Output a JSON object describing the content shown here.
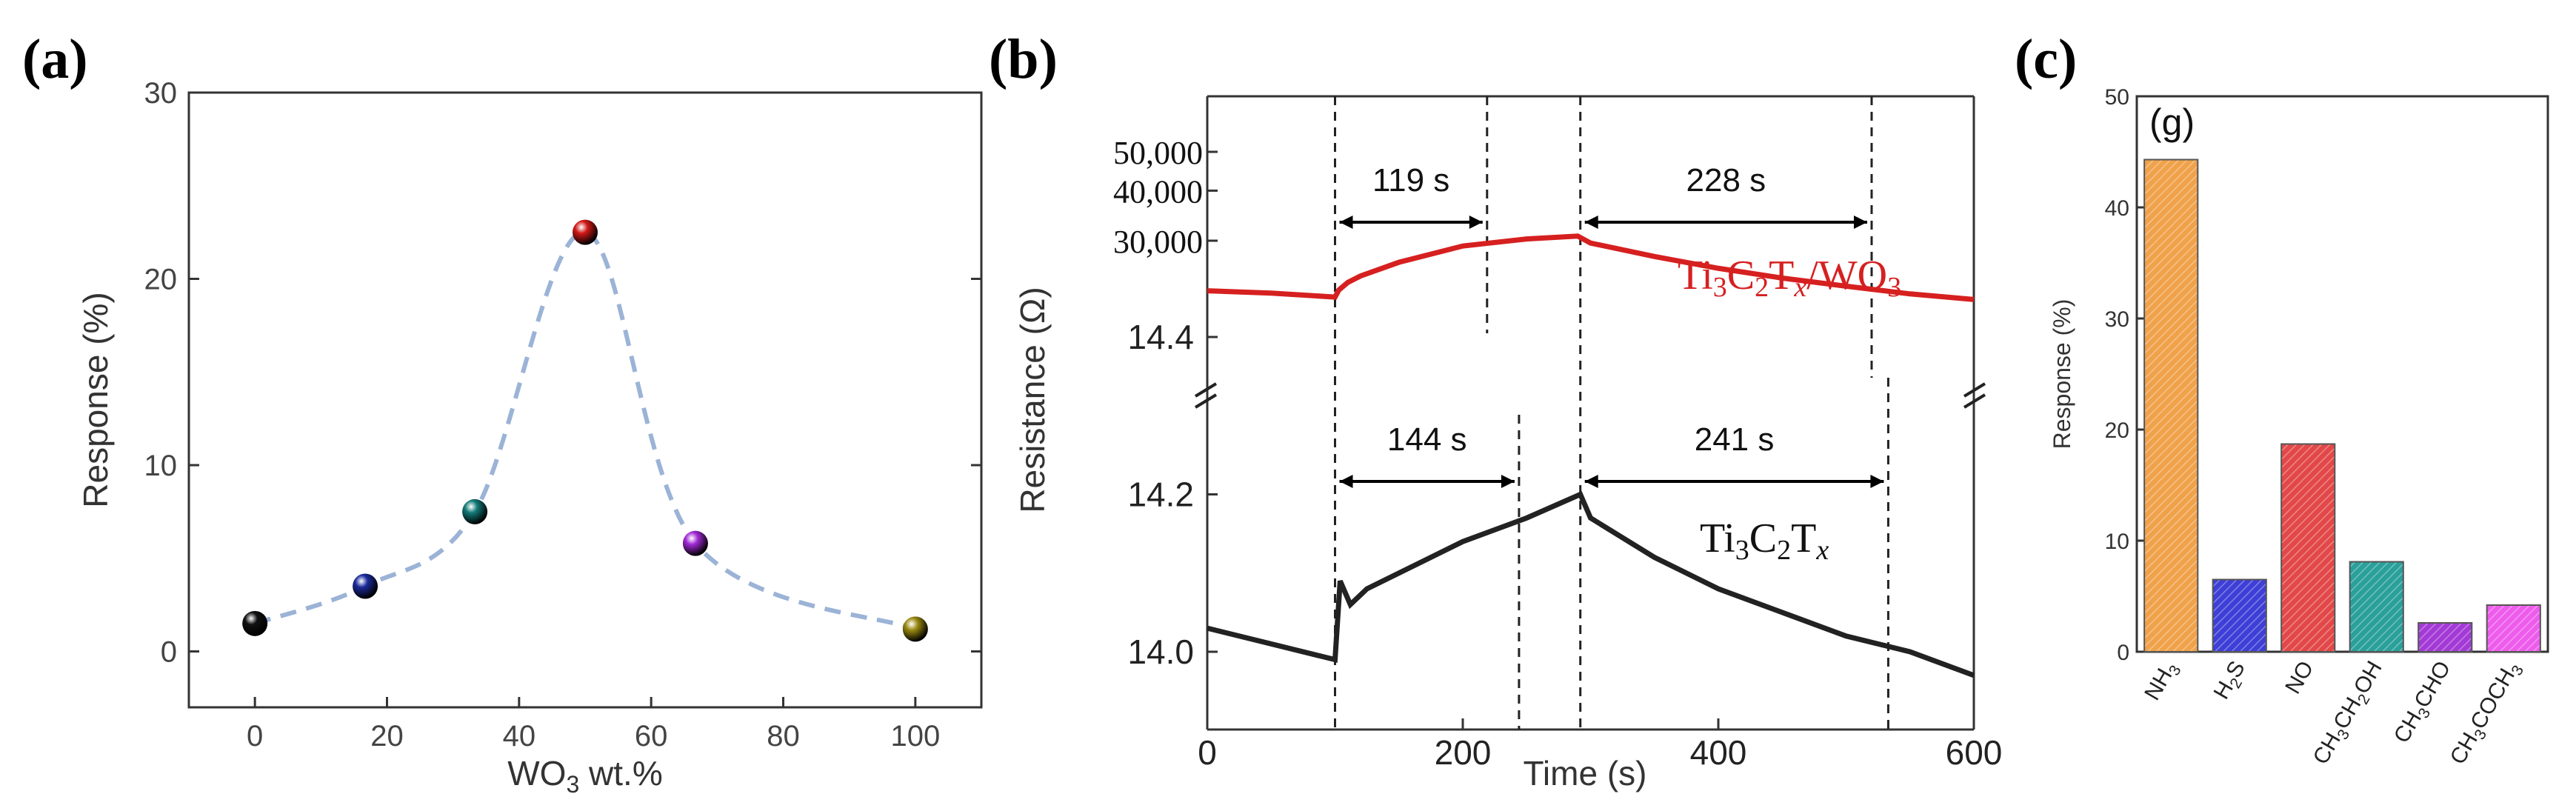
{
  "chart_data": [
    {
      "panel_label": "(a)",
      "type": "scatter",
      "xlabel": "WO3 wt.%",
      "ylabel": "Response (%)",
      "xlim": [
        -10,
        110
      ],
      "ylim": [
        -3,
        30
      ],
      "x_ticks": [
        "0",
        "20",
        "40",
        "60",
        "80",
        "100"
      ],
      "y_ticks": [
        "0",
        "10",
        "20",
        "30"
      ],
      "points": [
        {
          "x": 0,
          "y": 1.5,
          "color": "#111111"
        },
        {
          "x": 16.7,
          "y": 3.5,
          "color": "#1a2a9a"
        },
        {
          "x": 33.3,
          "y": 7.5,
          "color": "#127a78"
        },
        {
          "x": 50,
          "y": 22.5,
          "color": "#d21818"
        },
        {
          "x": 66.7,
          "y": 5.8,
          "color": "#a12ad6"
        },
        {
          "x": 100,
          "y": 1.2,
          "color": "#9a8a12"
        }
      ],
      "fit_curve_color": "#9bb3d6"
    },
    {
      "panel_label": "(b)",
      "type": "line",
      "xlabel": "Time (s)",
      "ylabel": "Resistance (Ω)",
      "xlim": [
        0,
        600
      ],
      "x_ticks": [
        "0",
        "200",
        "400",
        "600"
      ],
      "top_y_ticks": [
        "50,000",
        "40,000",
        "30,000"
      ],
      "bottom_y_ticks": [
        "14.4",
        "14.2",
        "14.0"
      ],
      "series": [
        {
          "name": "Ti3C2Tx/WO3",
          "color": "#d62020",
          "t": [
            0,
            50,
            100,
            103,
            110,
            120,
            150,
            200,
            250,
            290,
            300,
            350,
            400,
            450,
            500,
            550,
            600
          ],
          "values": [
            22500,
            22200,
            21700,
            22600,
            23600,
            24500,
            26500,
            29100,
            30300,
            30800,
            29600,
            27400,
            25600,
            24200,
            23100,
            22100,
            21400
          ]
        },
        {
          "name": "Ti3C2Tx",
          "color": "#222222",
          "t": [
            0,
            50,
            100,
            104,
            112,
            125,
            150,
            200,
            250,
            292,
            300,
            350,
            400,
            450,
            500,
            550,
            600
          ],
          "values": [
            14.03,
            14.01,
            13.99,
            14.09,
            14.06,
            14.08,
            14.1,
            14.14,
            14.17,
            14.2,
            14.17,
            14.12,
            14.08,
            14.05,
            14.02,
            14.0,
            13.97
          ]
        }
      ],
      "label_top": {
        "main": "Ti",
        "s1": "3",
        "c": "C",
        "s2": "2",
        "t": "T",
        "tx": "x",
        "wo": "/WO",
        "s3": "3"
      },
      "label_bottom": {
        "main": "Ti",
        "s1": "3",
        "c": "C",
        "s2": "2",
        "t": "T",
        "tx": "x"
      },
      "annotations": [
        {
          "text": "119 s",
          "row": "top",
          "from": 100,
          "to": 219
        },
        {
          "text": "228 s",
          "row": "top",
          "from": 292,
          "to": 520
        },
        {
          "text": "144 s",
          "row": "bottom",
          "from": 100,
          "to": 244
        },
        {
          "text": "241 s",
          "row": "bottom",
          "from": 292,
          "to": 533
        }
      ]
    },
    {
      "panel_label": "(c)",
      "type": "bar",
      "inner_label": "(g)",
      "ylabel": "Response (%)",
      "ylim": [
        0,
        50
      ],
      "y_ticks": [
        "0",
        "10",
        "20",
        "30",
        "40",
        "50"
      ],
      "categories": [
        "NH3",
        "H2S",
        "NO",
        "CH3CH2OH",
        "CH3CHO",
        "CH3COCH3"
      ],
      "category_parts": [
        [
          "NH",
          "3",
          ""
        ],
        [
          "H",
          "2",
          "S"
        ],
        [
          "NO",
          "",
          ""
        ],
        [
          "CH",
          "3",
          "CH",
          "2",
          "OH"
        ],
        [
          "CH",
          "3",
          "CHO"
        ],
        [
          "CH",
          "3",
          "COCH",
          "3"
        ]
      ],
      "values": [
        44.3,
        6.5,
        18.7,
        8.1,
        2.6,
        4.2
      ],
      "colors": [
        "#f0a24a",
        "#3e3fd6",
        "#e24848",
        "#2aa09a",
        "#a33ad6",
        "#ee5cec"
      ]
    }
  ]
}
